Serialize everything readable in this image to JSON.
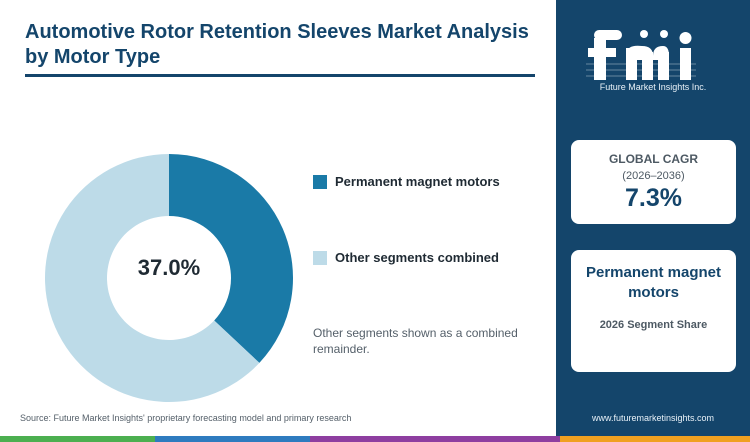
{
  "title": "Automotive Rotor Retention Sleeves Market Analysis by Motor Type",
  "chart_data": {
    "type": "pie",
    "categories": [
      "Permanent magnet motors",
      "Other segments combined"
    ],
    "values": [
      37.0,
      63.0
    ],
    "colors": [
      "#1a7aa7",
      "#bddbe8"
    ],
    "center_label": "37.0%"
  },
  "legend": {
    "items": [
      {
        "label": "Permanent magnet motors",
        "color": "#1a7aa7"
      },
      {
        "label": "Other segments combined",
        "color": "#bddbe8"
      }
    ]
  },
  "note": "Other segments shown as a combined remainder.",
  "source": "Source: Future Market Insights' proprietary forecasting model and primary research",
  "brand": {
    "logo_text": "fmi",
    "logo_subtitle": "Future Market Insights Inc.",
    "website": "www.futuremarketinsights.com"
  },
  "kpi_cagr": {
    "label": "GLOBAL CAGR",
    "period": "(2026–2036)",
    "value": "7.3%"
  },
  "kpi_segment": {
    "title": "Permanent magnet motors",
    "subtitle": "2026 Segment Share"
  },
  "colors": {
    "navy": "#14456b",
    "bar": [
      "#4caf50",
      "#2e7bbf",
      "#f0a020",
      "#8e3ea0"
    ]
  }
}
